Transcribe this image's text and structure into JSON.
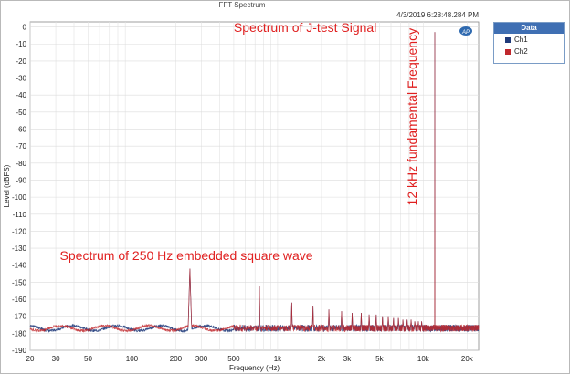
{
  "window": {
    "title": "FFT Spectrum",
    "timestamp": "4/3/2019 6:28:48.284 PM"
  },
  "legend": {
    "title": "Data",
    "items": [
      {
        "label": "Ch1",
        "color": "#1f3a7a"
      },
      {
        "label": "Ch2",
        "color": "#c0282d"
      }
    ]
  },
  "chart_data": {
    "type": "line",
    "title": "FFT Spectrum",
    "xlabel": "Frequency (Hz)",
    "ylabel": "Level (dBFS)",
    "xscale": "log",
    "xlim": [
      20,
      24000
    ],
    "ylim": [
      -190,
      3
    ],
    "x_ticks": [
      {
        "v": 20,
        "t": "20"
      },
      {
        "v": 30,
        "t": "30"
      },
      {
        "v": 50,
        "t": "50"
      },
      {
        "v": 100,
        "t": "100"
      },
      {
        "v": 200,
        "t": "200"
      },
      {
        "v": 300,
        "t": "300"
      },
      {
        "v": 500,
        "t": "500"
      },
      {
        "v": 1000,
        "t": "1k"
      },
      {
        "v": 2000,
        "t": "2k"
      },
      {
        "v": 3000,
        "t": "3k"
      },
      {
        "v": 5000,
        "t": "5k"
      },
      {
        "v": 10000,
        "t": "10k"
      },
      {
        "v": 20000,
        "t": "20k"
      }
    ],
    "y_ticks": [
      0,
      -10,
      -20,
      -30,
      -40,
      -50,
      -60,
      -70,
      -80,
      -90,
      -100,
      -110,
      -120,
      -130,
      -140,
      -150,
      -160,
      -170,
      -180,
      -190
    ],
    "grid": true,
    "legend_position": "right",
    "noise_floor": {
      "Ch1": -177,
      "Ch2": -177
    },
    "peaks": [
      {
        "x": 250,
        "y": -142
      },
      {
        "x": 750,
        "y": -152
      },
      {
        "x": 1250,
        "y": -162
      },
      {
        "x": 1750,
        "y": -164
      },
      {
        "x": 2250,
        "y": -166
      },
      {
        "x": 2750,
        "y": -167
      },
      {
        "x": 3250,
        "y": -168
      },
      {
        "x": 3750,
        "y": -168
      },
      {
        "x": 4250,
        "y": -169
      },
      {
        "x": 4750,
        "y": -169
      },
      {
        "x": 5250,
        "y": -170
      },
      {
        "x": 5750,
        "y": -170
      },
      {
        "x": 6250,
        "y": -171
      },
      {
        "x": 6750,
        "y": -171
      },
      {
        "x": 7250,
        "y": -172
      },
      {
        "x": 7750,
        "y": -172
      },
      {
        "x": 8250,
        "y": -172
      },
      {
        "x": 8750,
        "y": -173
      },
      {
        "x": 9250,
        "y": -173
      },
      {
        "x": 9750,
        "y": -173
      },
      {
        "x": 12000,
        "y": -3
      }
    ],
    "annotations": [
      {
        "text": "Spectrum of J-test Signal",
        "x": 500,
        "y": -3
      },
      {
        "text": "Spectrum of 250 Hz embedded square wave",
        "x": 32,
        "y": -137
      },
      {
        "text": "12 kHz fundamental Frequency",
        "x": 9000,
        "y": -105,
        "rotate": -90
      }
    ]
  }
}
